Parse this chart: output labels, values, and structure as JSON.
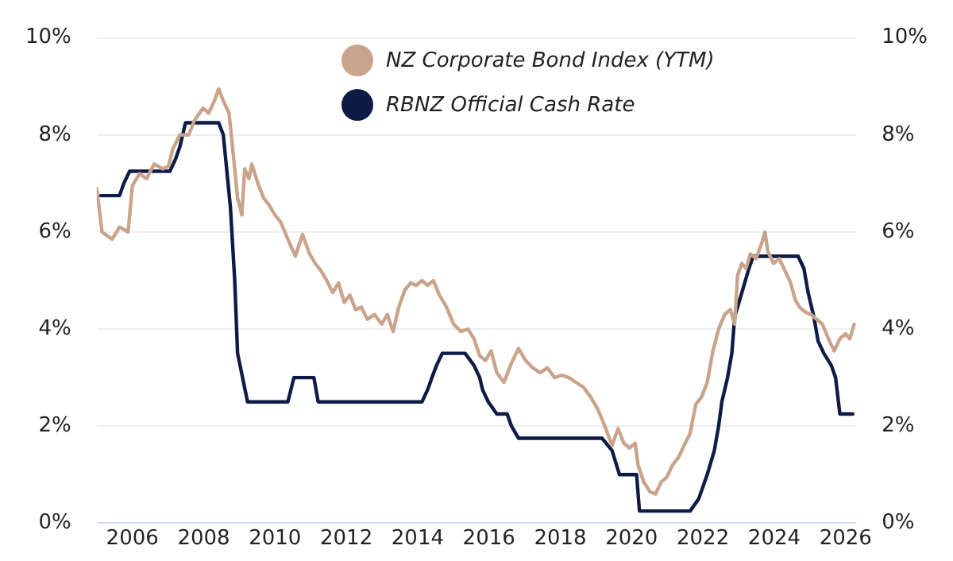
{
  "chart_data": {
    "type": "line",
    "xlim": [
      2005,
      2026.3
    ],
    "xticks": [
      2006,
      2008,
      2010,
      2012,
      2014,
      2016,
      2018,
      2020,
      2022,
      2024,
      2026
    ],
    "ylim": [
      0,
      10
    ],
    "yticks": [
      {
        "value": 0,
        "label": "0%"
      },
      {
        "value": 2,
        "label": "2%"
      },
      {
        "value": 4,
        "label": "4%"
      },
      {
        "value": 6,
        "label": "6%"
      },
      {
        "value": 8,
        "label": "8%"
      },
      {
        "value": 10,
        "label": "10%"
      }
    ],
    "y2lim": [
      0,
      10
    ],
    "y2ticks": [
      {
        "value": 0,
        "label": "0%"
      },
      {
        "value": 2,
        "label": "2%"
      },
      {
        "value": 4,
        "label": "4%"
      },
      {
        "value": 6,
        "label": "6%"
      },
      {
        "value": 8,
        "label": "8%"
      },
      {
        "value": 10,
        "label": "10%"
      }
    ],
    "grid": "y",
    "legend": "top",
    "marker": "none",
    "line_style": "solid",
    "series": [
      {
        "name": "NZ Corporate Bond Index (YTM)",
        "color": "#c9a48c",
        "x": [
          2005.0,
          2005.15,
          2005.43,
          2005.64,
          2005.88,
          2006.0,
          2006.2,
          2006.4,
          2006.61,
          2006.85,
          2007.01,
          2007.13,
          2007.33,
          2007.58,
          2007.74,
          2007.98,
          2008.14,
          2008.3,
          2008.42,
          2008.55,
          2008.71,
          2008.83,
          2008.95,
          2009.07,
          2009.15,
          2009.27,
          2009.35,
          2009.52,
          2009.68,
          2009.84,
          2010.0,
          2010.16,
          2010.36,
          2010.57,
          2010.77,
          2010.97,
          2011.13,
          2011.29,
          2011.45,
          2011.62,
          2011.78,
          2011.94,
          2012.1,
          2012.26,
          2012.42,
          2012.59,
          2012.79,
          2012.99,
          2013.15,
          2013.31,
          2013.47,
          2013.64,
          2013.8,
          2013.96,
          2014.12,
          2014.28,
          2014.44,
          2014.61,
          2014.81,
          2015.01,
          2015.21,
          2015.41,
          2015.58,
          2015.74,
          2015.9,
          2016.06,
          2016.22,
          2016.42,
          2016.63,
          2016.83,
          2017.03,
          2017.23,
          2017.43,
          2017.64,
          2017.84,
          2018.04,
          2018.24,
          2018.44,
          2018.65,
          2018.85,
          2019.05,
          2019.25,
          2019.45,
          2019.62,
          2019.78,
          2019.94,
          2020.1,
          2020.18,
          2020.34,
          2020.51,
          2020.67,
          2020.83,
          2020.99,
          2021.15,
          2021.31,
          2021.47,
          2021.64,
          2021.8,
          2021.96,
          2022.12,
          2022.28,
          2022.44,
          2022.61,
          2022.77,
          2022.89,
          2022.97,
          2023.09,
          2023.21,
          2023.33,
          2023.49,
          2023.66,
          2023.74,
          2023.82,
          2023.98,
          2024.14,
          2024.3,
          2024.46,
          2024.59,
          2024.71,
          2024.87,
          2025.03,
          2025.19,
          2025.35,
          2025.52,
          2025.68,
          2025.84,
          2026.0,
          2026.12,
          2026.24
        ],
        "values": [
          6.9,
          6.0,
          5.85,
          6.1,
          6.0,
          6.95,
          7.2,
          7.1,
          7.4,
          7.3,
          7.35,
          7.7,
          8.0,
          8.0,
          8.3,
          8.55,
          8.45,
          8.7,
          8.95,
          8.7,
          8.45,
          7.6,
          6.7,
          6.35,
          7.3,
          7.1,
          7.4,
          7.0,
          6.7,
          6.55,
          6.35,
          6.2,
          5.85,
          5.5,
          5.95,
          5.55,
          5.35,
          5.2,
          5.0,
          4.75,
          4.95,
          4.55,
          4.7,
          4.4,
          4.45,
          4.2,
          4.3,
          4.1,
          4.3,
          3.95,
          4.45,
          4.8,
          4.95,
          4.9,
          5.0,
          4.9,
          5.0,
          4.7,
          4.45,
          4.1,
          3.95,
          4.0,
          3.8,
          3.45,
          3.35,
          3.55,
          3.1,
          2.9,
          3.3,
          3.6,
          3.35,
          3.2,
          3.1,
          3.2,
          3.0,
          3.05,
          3.0,
          2.9,
          2.8,
          2.6,
          2.35,
          2.0,
          1.6,
          1.95,
          1.65,
          1.55,
          1.65,
          1.2,
          0.85,
          0.65,
          0.6,
          0.85,
          0.95,
          1.2,
          1.35,
          1.6,
          1.85,
          2.45,
          2.6,
          2.9,
          3.55,
          4.0,
          4.3,
          4.4,
          4.1,
          5.1,
          5.35,
          5.25,
          5.55,
          5.45,
          5.8,
          6.0,
          5.6,
          5.35,
          5.45,
          5.2,
          4.95,
          4.6,
          4.45,
          4.35,
          4.3,
          4.2,
          4.1,
          3.8,
          3.55,
          3.8,
          3.9,
          3.8,
          4.1
        ]
      },
      {
        "name": "RBNZ Official Cash Rate",
        "color": "#0d1b45",
        "x": [
          2005.11,
          2005.64,
          2005.76,
          2005.92,
          2007.05,
          2007.21,
          2007.33,
          2007.41,
          2007.49,
          2008.42,
          2008.55,
          2008.75,
          2008.87,
          2008.95,
          2009.23,
          2010.36,
          2010.53,
          2011.09,
          2011.21,
          2014.12,
          2014.28,
          2014.4,
          2014.53,
          2014.69,
          2015.33,
          2015.58,
          2015.74,
          2015.82,
          2015.98,
          2016.22,
          2016.51,
          2016.63,
          2016.83,
          2019.17,
          2019.45,
          2019.66,
          2020.14,
          2020.22,
          2021.64,
          2021.88,
          2022.0,
          2022.12,
          2022.32,
          2022.44,
          2022.53,
          2022.69,
          2022.81,
          2022.89,
          2023.09,
          2023.29,
          2023.41,
          2024.67,
          2024.83,
          2024.95,
          2025.11,
          2025.23,
          2025.39,
          2025.6,
          2025.72,
          2025.84,
          2026.2
        ],
        "values": [
          6.75,
          6.75,
          7.0,
          7.25,
          7.25,
          7.5,
          7.75,
          8.0,
          8.25,
          8.25,
          8.0,
          6.5,
          5.0,
          3.5,
          2.5,
          2.5,
          3.0,
          3.0,
          2.5,
          2.5,
          2.75,
          3.0,
          3.25,
          3.5,
          3.5,
          3.25,
          3.0,
          2.75,
          2.5,
          2.25,
          2.25,
          2.0,
          1.75,
          1.75,
          1.5,
          1.0,
          1.0,
          0.25,
          0.25,
          0.5,
          0.75,
          1.0,
          1.5,
          2.0,
          2.5,
          3.0,
          3.5,
          4.25,
          4.75,
          5.25,
          5.5,
          5.5,
          5.25,
          4.75,
          4.25,
          3.75,
          3.5,
          3.25,
          3.0,
          2.25,
          2.25
        ]
      }
    ]
  }
}
